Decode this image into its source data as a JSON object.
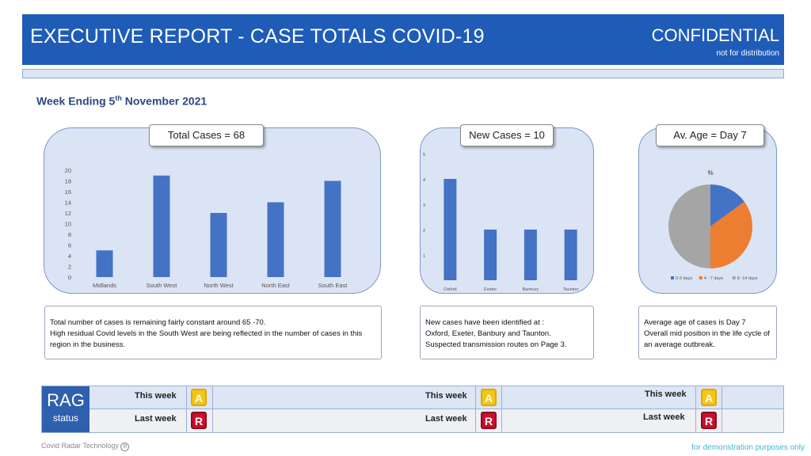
{
  "header": {
    "title": "EXECUTIVE REPORT  - CASE TOTALS COVID-19",
    "confidential": "CONFIDENTIAL",
    "sub": "not for distribution"
  },
  "week": {
    "prefix": "Week Ending 5",
    "sup": "th",
    "suffix": " November 2021"
  },
  "panels": {
    "total": {
      "title": "Total Cases = 68"
    },
    "new": {
      "title": "New Cases = 10"
    },
    "age": {
      "title": "Av. Age = Day 7"
    }
  },
  "chart_data": [
    {
      "type": "bar",
      "title": "",
      "categories": [
        "Midlands",
        "South West",
        "North West",
        "North East",
        "South East"
      ],
      "values": [
        5,
        19,
        12,
        14,
        18
      ],
      "ylim": [
        0,
        20
      ],
      "yticks": [
        0,
        2,
        4,
        6,
        8,
        10,
        12,
        14,
        16,
        18,
        20
      ],
      "xlabel": "",
      "ylabel": "",
      "color": "#4472c4"
    },
    {
      "type": "bar",
      "title": "",
      "categories": [
        "Oxford",
        "Exeter",
        "Banbury",
        "Taunton"
      ],
      "values": [
        4,
        2,
        2,
        2
      ],
      "ylim": [
        0,
        5
      ],
      "yticks": [
        1,
        2,
        3,
        4,
        5
      ],
      "xlabel": "",
      "ylabel": "",
      "color": "#4472c4"
    },
    {
      "type": "pie",
      "title": "%",
      "categories": [
        "0-3 days",
        "4 - 7 days",
        "8 -14 days"
      ],
      "values": [
        15,
        35,
        50
      ],
      "colors": [
        "#4472c4",
        "#ed7d31",
        "#a5a5a5"
      ],
      "legend": "bottom"
    }
  ],
  "texts": {
    "total": [
      "Total number of cases is remaining fairly constant around 65 -70.",
      "High residual Covid levels in the South West are being reflected in the number of cases in this region in the business."
    ],
    "new": [
      "New cases have been identified at :",
      "Oxford, Exeter, Banbury and Taunton.",
      "Suspected transmission routes on Page 3."
    ],
    "age": [
      "Average age of cases is Day 7",
      "Overall mid position in the life cycle of an average outbreak."
    ]
  },
  "rag": {
    "label_big": "RAG",
    "label_small": "status",
    "this_week": "This week",
    "last_week": "Last week",
    "this_badge": "A",
    "last_badge": "R"
  },
  "footer": {
    "left": "Covid Radar Technology",
    "left_mark": "R",
    "right": "for demonstration purposes only"
  }
}
